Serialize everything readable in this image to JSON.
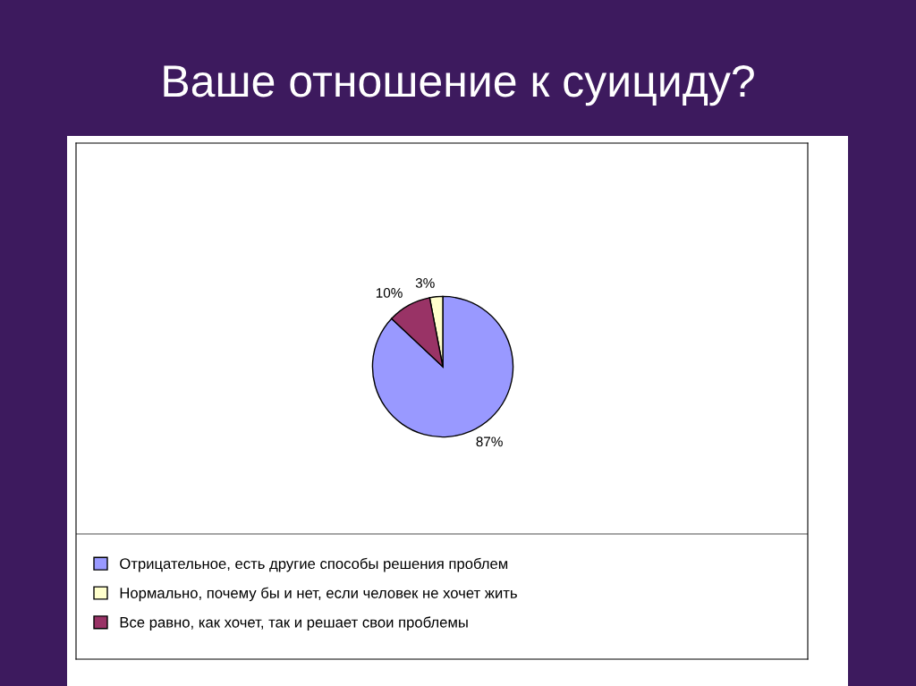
{
  "chart_data": {
    "type": "pie",
    "title": "Ваше отношение к суициду?",
    "categories": [
      "Отрицательное, есть другие способы решения проблем",
      "Нормально, почему бы и нет, если человек не хочет жить",
      "Все равно, как хочет, так и решает свои проблемы"
    ],
    "values": [
      87,
      3,
      10
    ],
    "colors": [
      "#9999ff",
      "#ffffcc",
      "#993366"
    ],
    "value_labels": [
      "87%",
      "3%",
      "10%"
    ],
    "legend": "bottom"
  }
}
